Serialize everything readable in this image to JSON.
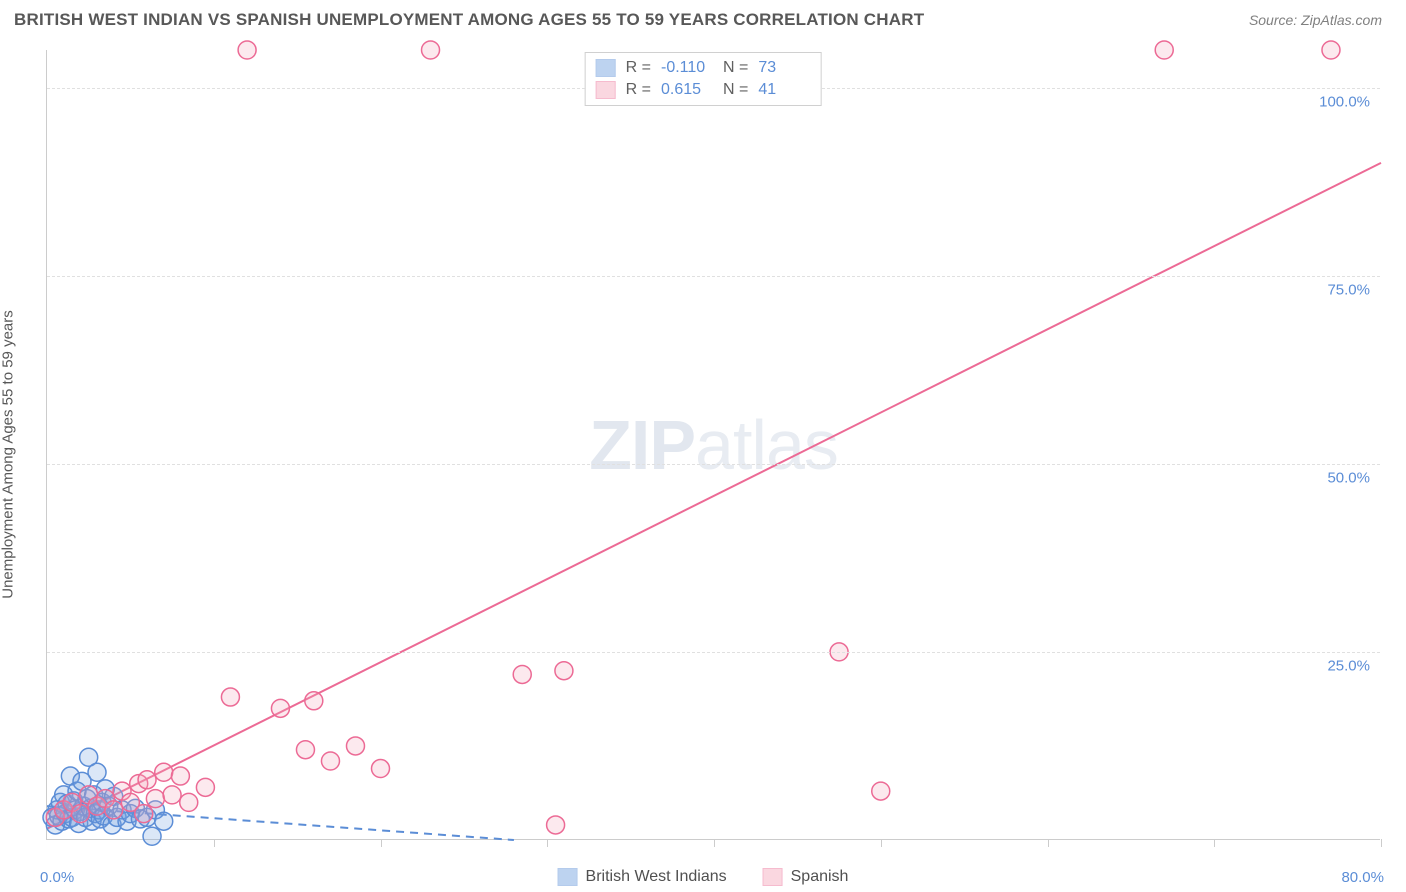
{
  "title": "BRITISH WEST INDIAN VS SPANISH UNEMPLOYMENT AMONG AGES 55 TO 59 YEARS CORRELATION CHART",
  "source": "Source: ZipAtlas.com",
  "y_axis_label": "Unemployment Among Ages 55 to 59 years",
  "watermark": {
    "left": "ZIP",
    "right": "atlas"
  },
  "chart": {
    "type": "scatter",
    "background_color": "#ffffff",
    "grid_color": "#e0e0e0",
    "axis_color": "#cccccc",
    "tick_label_color": "#5b8dd6",
    "xlim": [
      0,
      80
    ],
    "ylim": [
      0,
      105
    ],
    "x_ticks": [
      0,
      10,
      20,
      30,
      40,
      50,
      60,
      70,
      80
    ],
    "y_ticks_labeled": [
      25,
      50,
      75,
      100
    ],
    "x_min_label": "0.0%",
    "x_max_label": "80.0%",
    "y_tick_labels": [
      "25.0%",
      "50.0%",
      "75.0%",
      "100.0%"
    ],
    "marker_radius": 9,
    "marker_stroke_width": 1.5,
    "marker_fill_opacity": 0.25,
    "line_width": 2
  },
  "series": [
    {
      "name": "British West Indians",
      "color": "#6f9fe0",
      "stroke": "#5b8dd6",
      "R": "-0.110",
      "N": "73",
      "trend": {
        "x1": 0,
        "y1": 4.5,
        "x2": 28,
        "y2": 0,
        "dashed": true
      },
      "points": [
        [
          0.3,
          3.0
        ],
        [
          0.5,
          2.0
        ],
        [
          0.6,
          4.0
        ],
        [
          0.7,
          3.2
        ],
        [
          0.8,
          5.0
        ],
        [
          0.9,
          2.5
        ],
        [
          1.0,
          6.0
        ],
        [
          1.1,
          3.5
        ],
        [
          1.2,
          4.8
        ],
        [
          1.3,
          2.8
        ],
        [
          1.4,
          8.5
        ],
        [
          1.5,
          3.0
        ],
        [
          1.6,
          5.2
        ],
        [
          1.7,
          4.0
        ],
        [
          1.8,
          6.5
        ],
        [
          1.9,
          2.2
        ],
        [
          2.0,
          3.8
        ],
        [
          2.1,
          7.8
        ],
        [
          2.2,
          4.5
        ],
        [
          2.3,
          3.0
        ],
        [
          2.4,
          5.5
        ],
        [
          2.5,
          11.0
        ],
        [
          2.6,
          4.2
        ],
        [
          2.7,
          2.5
        ],
        [
          2.8,
          6.0
        ],
        [
          2.9,
          3.5
        ],
        [
          3.0,
          9.0
        ],
        [
          3.1,
          4.0
        ],
        [
          3.2,
          2.8
        ],
        [
          3.3,
          5.0
        ],
        [
          3.4,
          3.2
        ],
        [
          3.5,
          6.8
        ],
        [
          3.7,
          4.5
        ],
        [
          3.9,
          2.0
        ],
        [
          4.0,
          5.8
        ],
        [
          4.2,
          3.0
        ],
        [
          4.5,
          4.0
        ],
        [
          4.8,
          2.5
        ],
        [
          5.0,
          3.5
        ],
        [
          5.3,
          4.2
        ],
        [
          5.6,
          2.8
        ],
        [
          6.0,
          3.0
        ],
        [
          6.3,
          0.5
        ],
        [
          6.5,
          4.0
        ],
        [
          7.0,
          2.5
        ]
      ]
    },
    {
      "name": "Spanish",
      "color": "#f4a8bc",
      "stroke": "#ec6a95",
      "R": "0.615",
      "N": "41",
      "trend": {
        "x1": 0,
        "y1": 1.5,
        "x2": 80,
        "y2": 90,
        "dashed": false
      },
      "points": [
        [
          0.5,
          3.0
        ],
        [
          1.0,
          4.0
        ],
        [
          1.5,
          5.0
        ],
        [
          2.0,
          3.5
        ],
        [
          2.5,
          6.0
        ],
        [
          3.0,
          4.5
        ],
        [
          3.5,
          5.5
        ],
        [
          4.0,
          4.0
        ],
        [
          4.5,
          6.5
        ],
        [
          5.0,
          5.0
        ],
        [
          5.5,
          7.5
        ],
        [
          5.8,
          3.5
        ],
        [
          6.0,
          8.0
        ],
        [
          6.5,
          5.5
        ],
        [
          7.0,
          9.0
        ],
        [
          7.5,
          6.0
        ],
        [
          8.0,
          8.5
        ],
        [
          8.5,
          5.0
        ],
        [
          9.5,
          7.0
        ],
        [
          11.0,
          19.0
        ],
        [
          12.0,
          105.0
        ],
        [
          14.0,
          17.5
        ],
        [
          15.5,
          12.0
        ],
        [
          16.0,
          18.5
        ],
        [
          17.0,
          10.5
        ],
        [
          18.5,
          12.5
        ],
        [
          20.0,
          9.5
        ],
        [
          23.0,
          105.0
        ],
        [
          28.5,
          22.0
        ],
        [
          30.5,
          2.0
        ],
        [
          31.0,
          22.5
        ],
        [
          47.5,
          25.0
        ],
        [
          50.0,
          6.5
        ],
        [
          67.0,
          105.0
        ],
        [
          77.0,
          105.0
        ]
      ]
    }
  ],
  "stats_box": {
    "rows": [
      {
        "swatch": 0,
        "R_label": "R =",
        "R": "-0.110",
        "N_label": "N =",
        "N": "73"
      },
      {
        "swatch": 1,
        "R_label": "R =",
        "R": "0.615",
        "N_label": "N =",
        "N": "41"
      }
    ]
  },
  "bottom_legend": [
    {
      "swatch": 0,
      "label": "British West Indians"
    },
    {
      "swatch": 1,
      "label": "Spanish"
    }
  ]
}
